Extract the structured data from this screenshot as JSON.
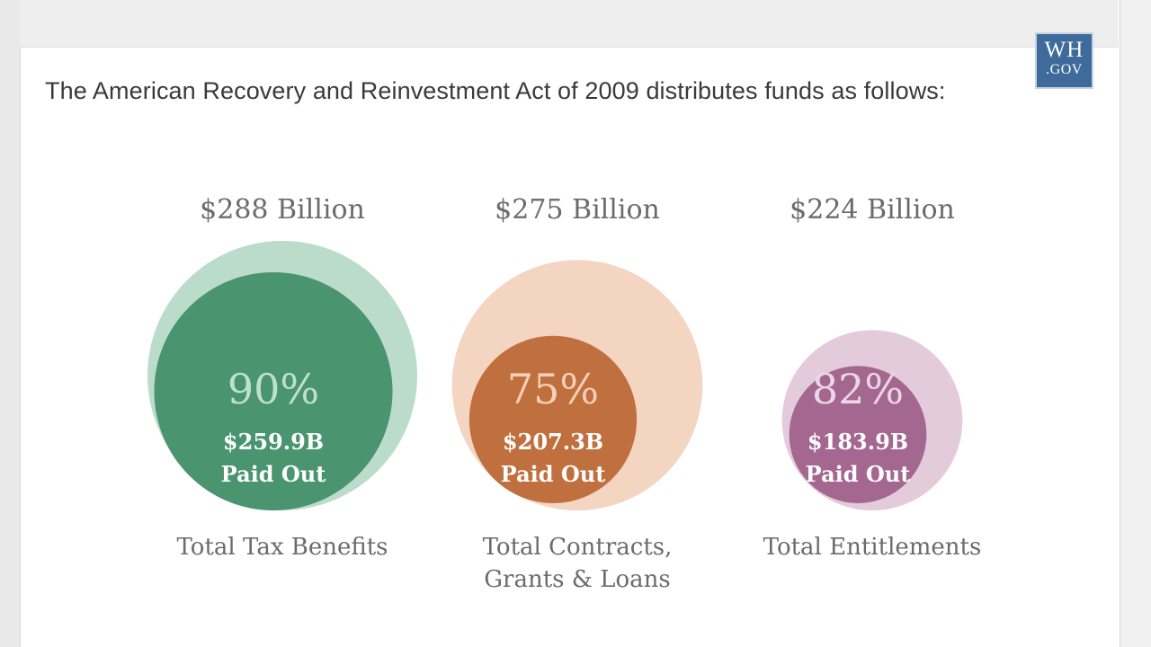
{
  "headline": "The American Recovery and Reinvestment Act of 2009 distributes funds as follows:",
  "logo": {
    "line1": "WH",
    "line2": ".GOV"
  },
  "colors": {
    "tax_outer": "#bcdccb",
    "tax_inner": "#4a9470",
    "contracts_outer": "#f3d5c2",
    "contracts_inner": "#c0703f",
    "entitlements_outer": "#e3cbdb",
    "entitlements_inner": "#a4678f"
  },
  "chart_data": {
    "type": "bubble",
    "title": "The American Recovery and Reinvestment Act of 2009 distributes funds as follows:",
    "unit": "Billion USD",
    "categories": [
      "Total Tax Benefits",
      "Total Contracts, Grants & Loans",
      "Total Entitlements"
    ],
    "items": [
      {
        "category": "Total Tax Benefits",
        "label_lines": [
          "Total Tax Benefits"
        ],
        "total": 288,
        "total_label": "$288 Billion",
        "paid_out": 259.9,
        "paid_label": "$259.9B",
        "paid_caption": "Paid Out",
        "percent": 90,
        "percent_label": "90%",
        "outer_color": "#bcdccb",
        "inner_color": "#4a9470",
        "percent_color": "#bfe0cf"
      },
      {
        "category": "Total Contracts, Grants & Loans",
        "label_lines": [
          "Total Contracts,",
          "Grants & Loans"
        ],
        "total": 275,
        "total_label": "$275 Billion",
        "paid_out": 207.3,
        "paid_label": "$207.3B",
        "paid_caption": "Paid Out",
        "percent": 75,
        "percent_label": "75%",
        "outer_color": "#f3d5c2",
        "inner_color": "#c0703f",
        "percent_color": "#f5d0b8"
      },
      {
        "category": "Total Entitlements",
        "label_lines": [
          "Total Entitlements"
        ],
        "total": 224,
        "total_label": "$224 Billion",
        "paid_out": 183.9,
        "paid_label": "$183.9B",
        "paid_caption": "Paid Out",
        "percent": 82,
        "percent_label": "82%",
        "outer_color": "#e3cbdb",
        "inner_color": "#a4678f",
        "percent_color": "#ecd6e4"
      }
    ]
  }
}
